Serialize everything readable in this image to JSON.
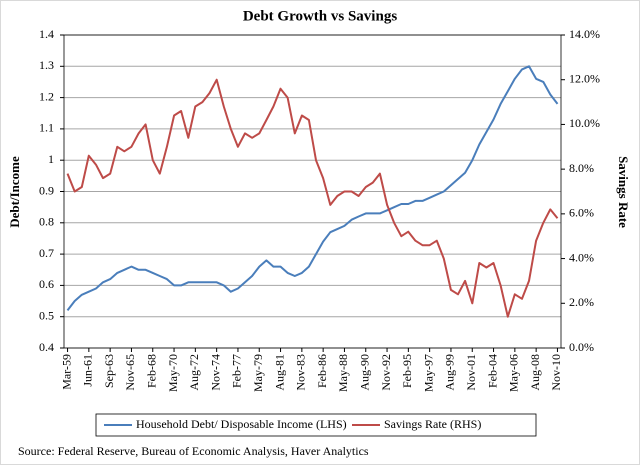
{
  "chart_data": {
    "type": "line",
    "title": "Debt Growth vs Savings",
    "y_label": "Debt/Income",
    "y2_label": "Savings Rate",
    "source": "Source:  Federal Reserve, Bureau of Economic Analysis, Haver Analytics",
    "categories": [
      "Mar-59",
      null,
      null,
      "Jun-61",
      null,
      null,
      "Sep-63",
      null,
      null,
      "Nov-65",
      null,
      null,
      "Feb-68",
      null,
      null,
      "May-70",
      null,
      null,
      "Aug-72",
      null,
      null,
      "Nov-74",
      null,
      null,
      "Feb-77",
      null,
      null,
      "May-79",
      null,
      null,
      "Aug-81",
      null,
      null,
      "Nov-83",
      null,
      null,
      "Feb-86",
      null,
      null,
      "May-88",
      null,
      null,
      "Aug-90",
      null,
      null,
      "Nov-92",
      null,
      null,
      "Feb-95",
      null,
      null,
      "May-97",
      null,
      null,
      "Aug-99",
      null,
      null,
      "Nov-01",
      null,
      null,
      "Feb-04",
      null,
      null,
      "May-06",
      null,
      null,
      "Aug-08",
      null,
      null,
      "Nov-10"
    ],
    "series": [
      {
        "name": "Household Debt/ Disposable Income (LHS)",
        "color": "#4a7ebb",
        "axis": "y",
        "values": [
          0.52,
          0.55,
          0.57,
          0.58,
          0.59,
          0.61,
          0.62,
          0.64,
          0.65,
          0.66,
          0.65,
          0.65,
          0.64,
          0.63,
          0.62,
          0.6,
          0.6,
          0.61,
          0.61,
          0.61,
          0.61,
          0.61,
          0.6,
          0.58,
          0.59,
          0.61,
          0.63,
          0.66,
          0.68,
          0.66,
          0.66,
          0.64,
          0.63,
          0.64,
          0.66,
          0.7,
          0.74,
          0.77,
          0.78,
          0.79,
          0.81,
          0.82,
          0.83,
          0.83,
          0.83,
          0.84,
          0.85,
          0.86,
          0.86,
          0.87,
          0.87,
          0.88,
          0.89,
          0.9,
          0.92,
          0.94,
          0.96,
          1.0,
          1.05,
          1.09,
          1.13,
          1.18,
          1.22,
          1.26,
          1.29,
          1.3,
          1.26,
          1.25,
          1.21,
          1.18
        ]
      },
      {
        "name": "Savings Rate (RHS)",
        "color": "#be4b48",
        "axis": "y2",
        "values": [
          7.8,
          7.0,
          7.2,
          8.6,
          8.2,
          7.6,
          7.8,
          9.0,
          8.8,
          9.0,
          9.6,
          10.0,
          8.4,
          7.8,
          9.0,
          10.4,
          10.6,
          9.4,
          10.8,
          11.0,
          11.4,
          12.0,
          10.8,
          9.8,
          9.0,
          9.6,
          9.4,
          9.6,
          10.2,
          10.8,
          11.6,
          11.2,
          9.6,
          10.4,
          10.2,
          8.4,
          7.6,
          6.4,
          6.8,
          7.0,
          7.0,
          6.8,
          7.2,
          7.4,
          7.8,
          6.4,
          5.6,
          5.0,
          5.2,
          4.8,
          4.6,
          4.6,
          4.8,
          4.0,
          2.6,
          2.4,
          3.0,
          2.0,
          3.8,
          3.6,
          3.8,
          2.8,
          1.4,
          2.4,
          2.2,
          3.0,
          4.8,
          5.6,
          6.2,
          5.8
        ]
      }
    ],
    "ylim": [
      0.4,
      1.4
    ],
    "yticks": [
      0.4,
      0.5,
      0.6,
      0.7,
      0.8,
      0.9,
      1,
      1.1,
      1.2,
      1.3,
      1.4
    ],
    "y2lim": [
      0,
      14
    ],
    "y2ticks": [
      {
        "value": 0,
        "label": "0.0%"
      },
      {
        "value": 2,
        "label": "2.0%"
      },
      {
        "value": 4,
        "label": "4.0%"
      },
      {
        "value": 6,
        "label": "6.0%"
      },
      {
        "value": 8,
        "label": "8.0%"
      },
      {
        "value": 10,
        "label": "10.0%"
      },
      {
        "value": 12,
        "label": "12.0%"
      },
      {
        "value": 14,
        "label": "14.0%"
      }
    ],
    "grid": true
  }
}
